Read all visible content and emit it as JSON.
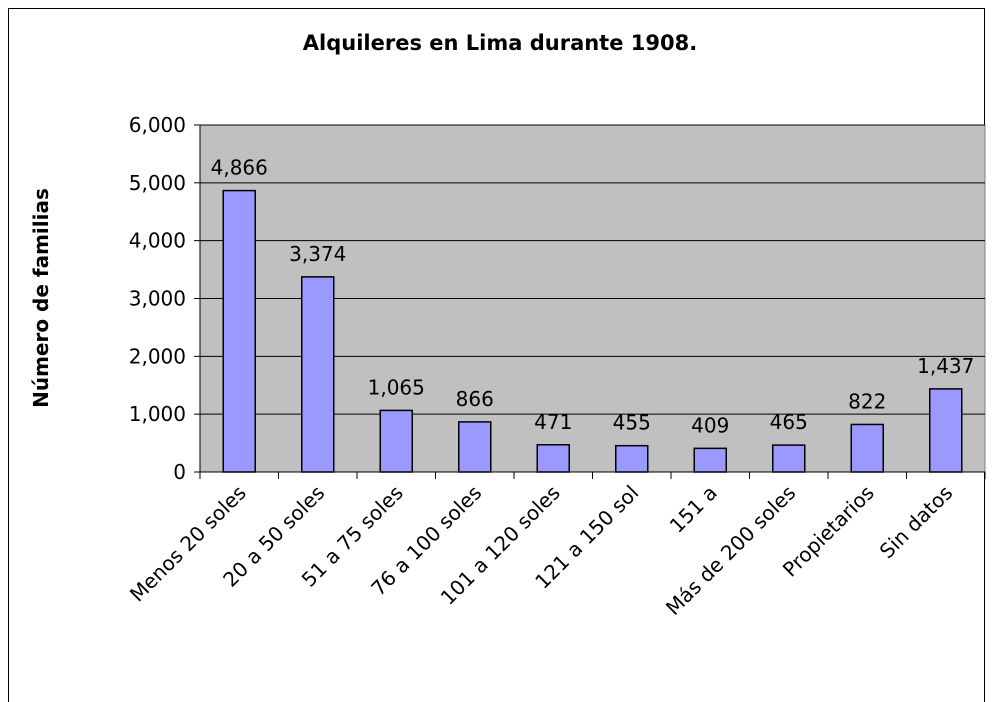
{
  "chart_data": {
    "type": "bar",
    "title": "Alquileres en Lima durante 1908.",
    "y_label": "Número de familias",
    "categories": [
      "Menos 20 soles",
      "20 a 50 soles",
      "51 a 75 soles",
      "76 a 100 soles",
      "101 a 120 soles",
      "121 a 150 sol",
      "151 a",
      "Más de 200 soles",
      "Propietarios",
      "Sin datos"
    ],
    "values": [
      4866,
      3374,
      1065,
      866,
      471,
      455,
      409,
      465,
      822,
      1437
    ],
    "value_labels": [
      "4,866",
      "3,374",
      "1,065",
      "866",
      "471",
      "455",
      "409",
      "465",
      "822",
      "1,437"
    ],
    "color": "#9999ff",
    "ylim": [
      0,
      6000
    ],
    "yticks": [
      0,
      {
        "value": 1000,
        "label": "1,000"
      },
      {
        "value": 2000,
        "label": "2,000"
      },
      {
        "value": 3000,
        "label": "3,000"
      },
      {
        "value": 4000,
        "label": "4,000"
      },
      {
        "value": 5000,
        "label": "5,000"
      },
      {
        "value": 6000,
        "label": "6,000"
      }
    ],
    "grid": true
  }
}
